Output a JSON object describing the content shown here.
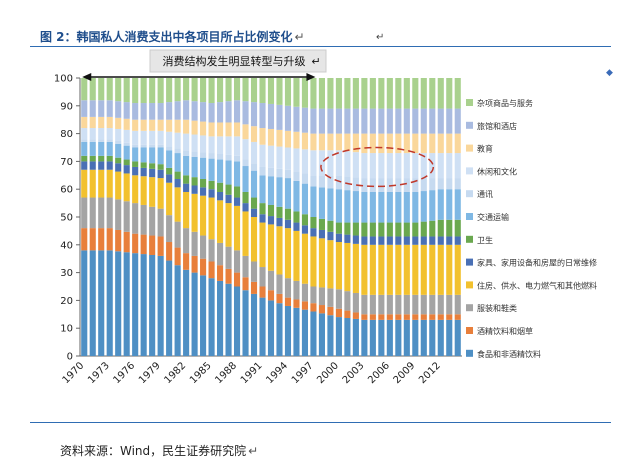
{
  "figure": {
    "title": "图 2：韩国私人消费支出中各项目所占比例变化",
    "title_mark": "↵",
    "stray_mark": "↵",
    "source": "资料来源：Wind，民生证券研究院",
    "source_mark": "↵"
  },
  "chart_data": {
    "type": "bar",
    "stacked": true,
    "percent": true,
    "ylim": [
      0,
      100
    ],
    "yticks": [
      0,
      10,
      20,
      30,
      40,
      50,
      60,
      70,
      80,
      90,
      100
    ],
    "xtick_labels": [
      "1970",
      "1973",
      "1976",
      "1979",
      "1982",
      "1985",
      "1988",
      "1991",
      "1994",
      "1997",
      "2000",
      "2003",
      "2006",
      "2009",
      "2012"
    ],
    "annotation": {
      "text": "消费结构发生明显转型与升级",
      "mark": "↵",
      "from_year": 1970,
      "to_year": 1997
    },
    "highlight": {
      "from_year": 2000,
      "to_year": 2009,
      "y_low": 61,
      "y_high": 75
    },
    "colors": [
      "#4e8fc4",
      "#e87f3b",
      "#a4a4a4",
      "#f2c12e",
      "#4a70b5",
      "#6aa84f",
      "#7fb8e4",
      "#c6daf0",
      "#cfe0f4",
      "#fad79b",
      "#a9bbe0",
      "#a9d18e"
    ],
    "series": [
      {
        "name": "食品和非酒精饮料",
        "points": [
          [
            1970,
            38
          ],
          [
            1973,
            38
          ],
          [
            1976,
            37
          ],
          [
            1979,
            36
          ],
          [
            1982,
            31
          ],
          [
            1985,
            28
          ],
          [
            1988,
            25
          ],
          [
            1991,
            21
          ],
          [
            1994,
            18
          ],
          [
            1997,
            16
          ],
          [
            2000,
            14
          ],
          [
            2003,
            13
          ],
          [
            2006,
            13
          ],
          [
            2009,
            13
          ],
          [
            2012,
            13
          ],
          [
            2014,
            13
          ]
        ]
      },
      {
        "name": "酒精饮料和烟草",
        "points": [
          [
            1970,
            8
          ],
          [
            1973,
            8
          ],
          [
            1976,
            7
          ],
          [
            1979,
            7
          ],
          [
            1982,
            6
          ],
          [
            1985,
            6
          ],
          [
            1988,
            5
          ],
          [
            1991,
            4
          ],
          [
            1994,
            3
          ],
          [
            1997,
            3
          ],
          [
            2000,
            3
          ],
          [
            2003,
            2
          ],
          [
            2006,
            2
          ],
          [
            2009,
            2
          ],
          [
            2012,
            2
          ],
          [
            2014,
            2
          ]
        ]
      },
      {
        "name": "服装和鞋类",
        "points": [
          [
            1970,
            11
          ],
          [
            1973,
            11
          ],
          [
            1976,
            11
          ],
          [
            1979,
            10
          ],
          [
            1982,
            9
          ],
          [
            1985,
            8
          ],
          [
            1988,
            8
          ],
          [
            1991,
            7
          ],
          [
            1994,
            7
          ],
          [
            1997,
            6
          ],
          [
            2000,
            7
          ],
          [
            2003,
            7
          ],
          [
            2006,
            7
          ],
          [
            2009,
            7
          ],
          [
            2012,
            7
          ],
          [
            2014,
            7
          ]
        ]
      },
      {
        "name": "住房、供水、电力燃气和其他燃料",
        "points": [
          [
            1970,
            10
          ],
          [
            1973,
            10
          ],
          [
            1976,
            10
          ],
          [
            1979,
            11
          ],
          [
            1982,
            13
          ],
          [
            1985,
            15
          ],
          [
            1988,
            16
          ],
          [
            1991,
            16
          ],
          [
            1994,
            18
          ],
          [
            1997,
            18
          ],
          [
            2000,
            17
          ],
          [
            2003,
            18
          ],
          [
            2006,
            18
          ],
          [
            2009,
            18
          ],
          [
            2012,
            18
          ],
          [
            2014,
            18
          ]
        ]
      },
      {
        "name": "家具、家用设备和房屋的日常维修",
        "points": [
          [
            1970,
            3
          ],
          [
            1973,
            3
          ],
          [
            1976,
            3
          ],
          [
            1979,
            3
          ],
          [
            1982,
            3
          ],
          [
            1985,
            3
          ],
          [
            1988,
            3
          ],
          [
            1991,
            3
          ],
          [
            1994,
            3
          ],
          [
            1997,
            3
          ],
          [
            2000,
            3
          ],
          [
            2003,
            3
          ],
          [
            2006,
            3
          ],
          [
            2009,
            3
          ],
          [
            2012,
            3
          ],
          [
            2014,
            3
          ]
        ]
      },
      {
        "name": "卫生",
        "points": [
          [
            1970,
            2
          ],
          [
            1973,
            2
          ],
          [
            1976,
            2
          ],
          [
            1979,
            2
          ],
          [
            1982,
            3
          ],
          [
            1985,
            3
          ],
          [
            1988,
            4
          ],
          [
            1991,
            4
          ],
          [
            1994,
            4
          ],
          [
            1997,
            4
          ],
          [
            2000,
            4
          ],
          [
            2003,
            5
          ],
          [
            2006,
            5
          ],
          [
            2009,
            5
          ],
          [
            2012,
            6
          ],
          [
            2014,
            6
          ]
        ]
      },
      {
        "name": "交通运输",
        "points": [
          [
            1970,
            5
          ],
          [
            1973,
            5
          ],
          [
            1976,
            5
          ],
          [
            1979,
            6
          ],
          [
            1982,
            7
          ],
          [
            1985,
            8
          ],
          [
            1988,
            9
          ],
          [
            1991,
            10
          ],
          [
            1994,
            11
          ],
          [
            1997,
            11
          ],
          [
            2000,
            12
          ],
          [
            2003,
            11
          ],
          [
            2006,
            11
          ],
          [
            2009,
            11
          ],
          [
            2012,
            11
          ],
          [
            2014,
            11
          ]
        ]
      },
      {
        "name": "通讯",
        "points": [
          [
            1970,
            1
          ],
          [
            1973,
            1
          ],
          [
            1976,
            1
          ],
          [
            1979,
            1
          ],
          [
            1982,
            2
          ],
          [
            1985,
            2
          ],
          [
            1988,
            2
          ],
          [
            1991,
            3
          ],
          [
            1994,
            3
          ],
          [
            1997,
            4
          ],
          [
            2000,
            5
          ],
          [
            2003,
            5
          ],
          [
            2006,
            5
          ],
          [
            2009,
            5
          ],
          [
            2012,
            4
          ],
          [
            2014,
            4
          ]
        ]
      },
      {
        "name": "休闲和文化",
        "points": [
          [
            1970,
            4
          ],
          [
            1973,
            4
          ],
          [
            1976,
            5
          ],
          [
            1979,
            5
          ],
          [
            1982,
            6
          ],
          [
            1985,
            6
          ],
          [
            1988,
            7
          ],
          [
            1991,
            8
          ],
          [
            1994,
            8
          ],
          [
            1997,
            9
          ],
          [
            2000,
            9
          ],
          [
            2003,
            9
          ],
          [
            2006,
            9
          ],
          [
            2009,
            9
          ],
          [
            2012,
            9
          ],
          [
            2014,
            9
          ]
        ]
      },
      {
        "name": "教育",
        "points": [
          [
            1970,
            4
          ],
          [
            1973,
            4
          ],
          [
            1976,
            4
          ],
          [
            1979,
            4
          ],
          [
            1982,
            5
          ],
          [
            1985,
            5
          ],
          [
            1988,
            5
          ],
          [
            1991,
            6
          ],
          [
            1994,
            6
          ],
          [
            1997,
            6
          ],
          [
            2000,
            6
          ],
          [
            2003,
            7
          ],
          [
            2006,
            7
          ],
          [
            2009,
            7
          ],
          [
            2012,
            7
          ],
          [
            2014,
            7
          ]
        ]
      },
      {
        "name": "旅馆和酒店",
        "points": [
          [
            1970,
            6
          ],
          [
            1973,
            6
          ],
          [
            1976,
            6
          ],
          [
            1979,
            6
          ],
          [
            1982,
            7
          ],
          [
            1985,
            7
          ],
          [
            1988,
            8
          ],
          [
            1991,
            9
          ],
          [
            1994,
            9
          ],
          [
            1997,
            9
          ],
          [
            2000,
            9
          ],
          [
            2003,
            9
          ],
          [
            2006,
            9
          ],
          [
            2009,
            9
          ],
          [
            2012,
            9
          ],
          [
            2014,
            9
          ]
        ]
      },
      {
        "name": "杂项商品与服务",
        "points": [
          [
            1970,
            8
          ],
          [
            1973,
            8
          ],
          [
            1976,
            9
          ],
          [
            1979,
            9
          ],
          [
            1982,
            8
          ],
          [
            1985,
            9
          ],
          [
            1988,
            8
          ],
          [
            1991,
            9
          ],
          [
            1994,
            10
          ],
          [
            1997,
            11
          ],
          [
            2000,
            11
          ],
          [
            2003,
            11
          ],
          [
            2006,
            11
          ],
          [
            2009,
            11
          ],
          [
            2012,
            11
          ],
          [
            2014,
            11
          ]
        ]
      }
    ]
  }
}
